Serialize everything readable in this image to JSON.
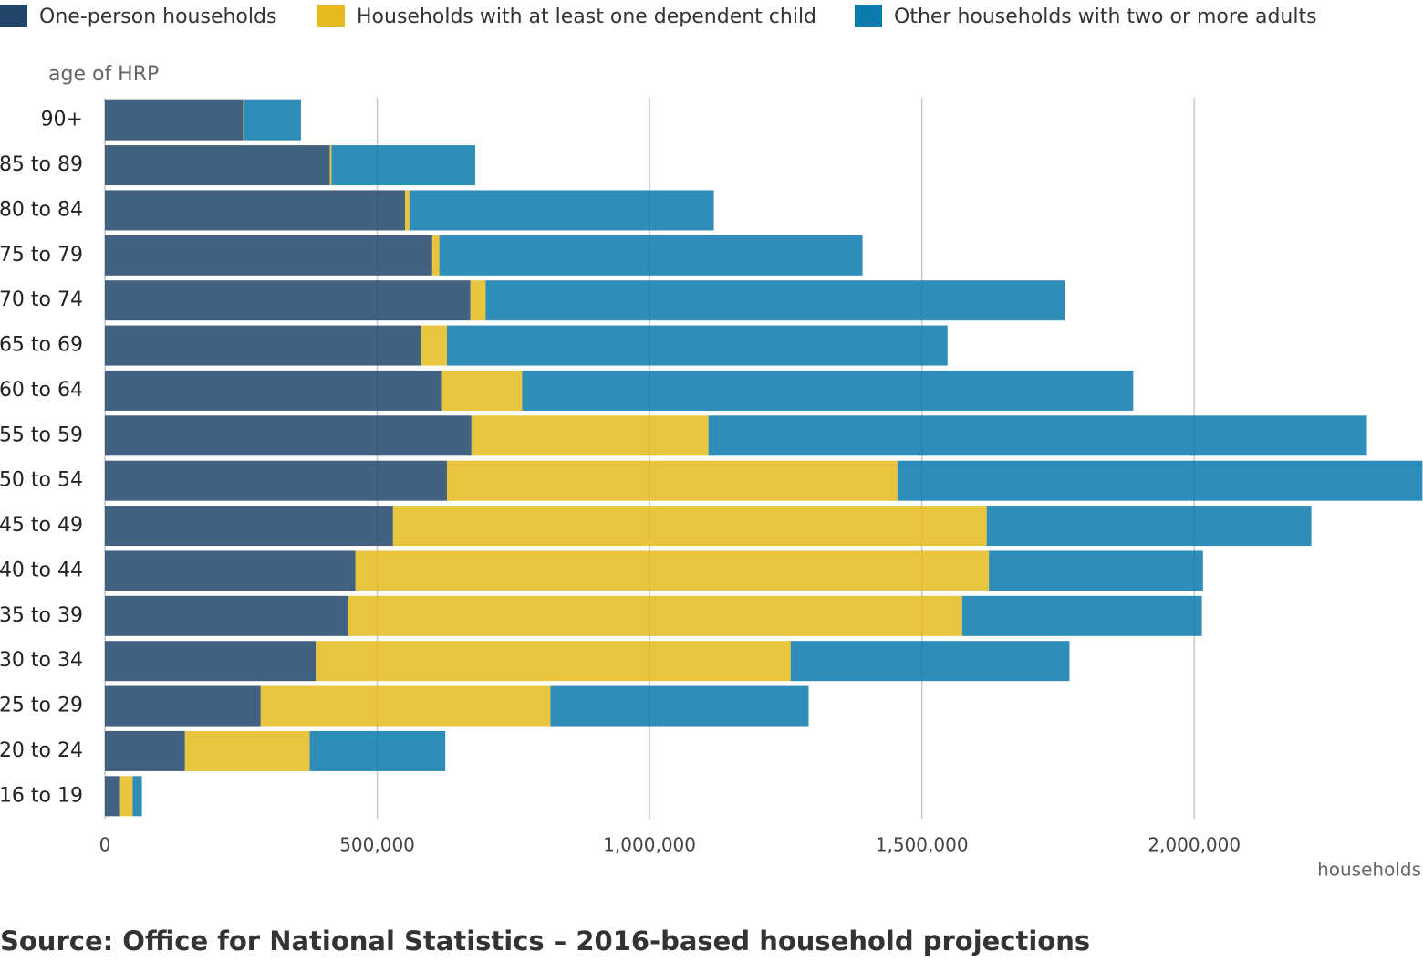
{
  "chart_data": {
    "type": "bar",
    "orientation": "horizontal",
    "stacked": true,
    "y_label": "age of HRP",
    "x_label": "households",
    "source": "Source: Office for National Statistics – 2016-based household projections",
    "categories": [
      "90+",
      "85 to 89",
      "80 to 84",
      "75 to 79",
      "70 to 74",
      "65 to 69",
      "60 to 64",
      "55 to 59",
      "50 to 54",
      "45 to 49",
      "40 to 44",
      "35 to 39",
      "30 to 34",
      "25 to 29",
      "20 to 24",
      "16 to 19"
    ],
    "series": [
      {
        "name": "One-person households",
        "color": "#22466b",
        "values": [
          254000,
          413000,
          551000,
          601000,
          671000,
          581000,
          619000,
          673000,
          628000,
          529000,
          460000,
          447000,
          387000,
          286000,
          147000,
          28000
        ]
      },
      {
        "name": "Households with at least one dependent child",
        "color": "#e5ba1c",
        "values": [
          2000,
          3000,
          8000,
          13000,
          28000,
          47000,
          147000,
          435000,
          827000,
          1090000,
          1163000,
          1127000,
          872000,
          532000,
          229000,
          23000
        ]
      },
      {
        "name": "Other households with two or more adults",
        "color": "#0b7aad",
        "values": [
          104000,
          264000,
          559000,
          777000,
          1063000,
          919000,
          1122000,
          1209000,
          964000,
          596000,
          393000,
          440000,
          512000,
          474000,
          249000,
          17000
        ]
      }
    ],
    "xlim": [
      0,
      2420000
    ],
    "xticks": [
      0,
      {
        "value": 500000,
        "label": "500,000"
      },
      {
        "value": 1000000,
        "label": "1,000,000"
      },
      {
        "value": 1500000,
        "label": "1,500,000"
      },
      {
        "value": 2000000,
        "label": "2,000,000"
      }
    ],
    "grid": true,
    "legend": "top"
  }
}
